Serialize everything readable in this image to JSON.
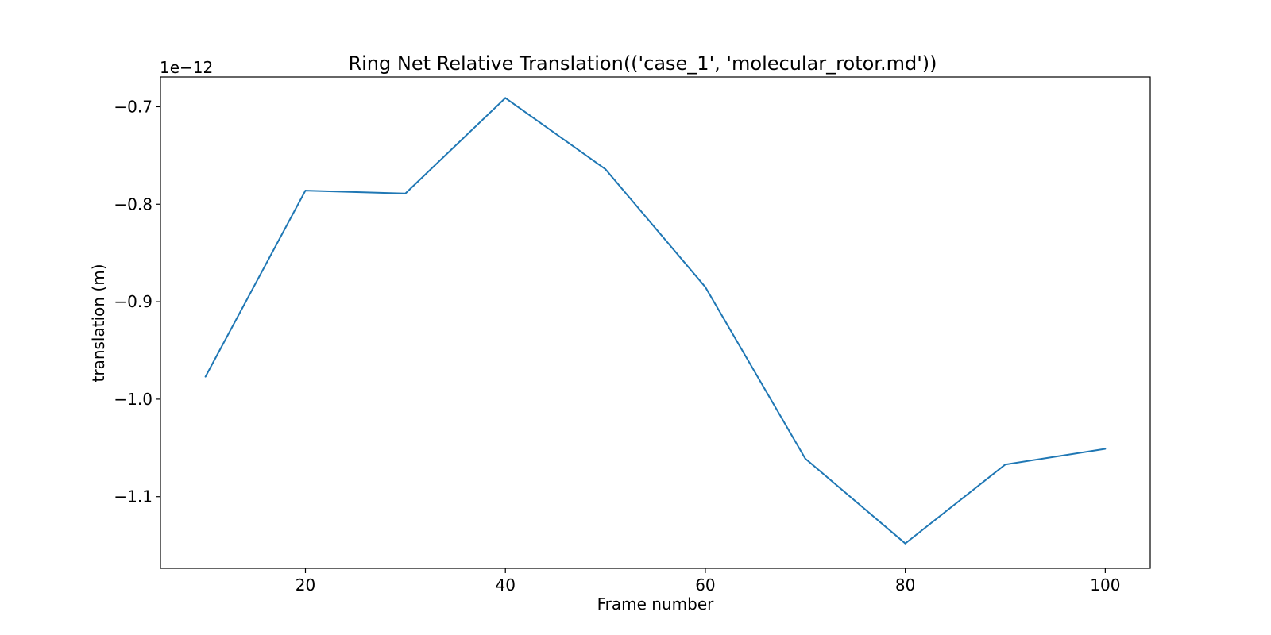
{
  "chart_data": {
    "type": "line",
    "title": "Ring Net Relative Translation(('case_1', 'molecular_rotor.md'))",
    "xlabel": "Frame number",
    "ylabel": "translation (m)",
    "y_offset_label": "1e−12",
    "x": [
      10,
      20,
      30,
      40,
      50,
      60,
      70,
      80,
      90,
      100
    ],
    "series": [
      {
        "values": [
          -0.977,
          -0.786,
          -0.789,
          -0.691,
          -0.764,
          -0.885,
          -1.061,
          -1.148,
          -1.067,
          -1.051
        ],
        "color": "#1f77b4"
      }
    ],
    "xlim": [
      5.5,
      104.5
    ],
    "ylim": [
      -1.1735,
      -0.6695
    ],
    "xticks": [
      20,
      40,
      60,
      80,
      100
    ],
    "xtick_labels": [
      "20",
      "40",
      "60",
      "80",
      "100"
    ],
    "yticks": [
      -0.7,
      -0.8,
      -0.9,
      -1.0,
      -1.1
    ],
    "ytick_labels": [
      "−0.7",
      "−0.8",
      "−0.9",
      "−1.0",
      "−1.1"
    ],
    "grid": false,
    "legend": false
  }
}
